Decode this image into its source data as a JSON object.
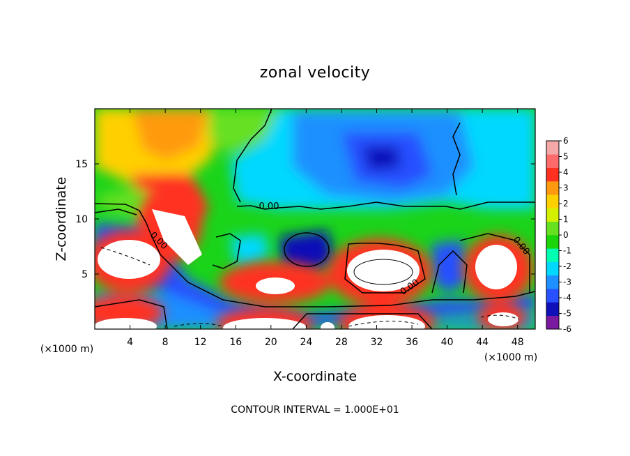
{
  "chart_data": {
    "type": "heatmap",
    "title": "zonal velocity",
    "xlabel": "X-coordinate",
    "ylabel": "Z-coordinate",
    "x_unit_label": "(×1000 m)",
    "xlim": [
      0,
      50
    ],
    "ylim": [
      0,
      20
    ],
    "x_ticks": [
      4,
      8,
      12,
      16,
      20,
      24,
      28,
      32,
      36,
      40,
      44,
      48
    ],
    "y_ticks": [
      5,
      10,
      15
    ],
    "colorbar": {
      "range": [
        -6,
        6
      ],
      "ticks": [
        -6,
        -5,
        -4,
        -3,
        -2,
        -1,
        0,
        1,
        2,
        3,
        4,
        5,
        6
      ],
      "colors": [
        "#7a1aa0",
        "#1010b8",
        "#2850ff",
        "#1e90ff",
        "#00d8ff",
        "#00ffb0",
        "#1bd40a",
        "#66e020",
        "#d4f000",
        "#ffd000",
        "#ff9a10",
        "#ff3020",
        "#ff6a6a",
        "#f4a8a8"
      ]
    },
    "contour_labels": [
      "0.00",
      "0.00",
      "0.00",
      "0.00"
    ],
    "footer": "CONTOUR INTERVAL = 1.000E+01",
    "features": [
      {
        "x": 6,
        "y": 18,
        "value": 3
      },
      {
        "x": 9,
        "y": 11,
        "value": 5
      },
      {
        "x": 9,
        "y": 8,
        "value": 6
      },
      {
        "x": 23,
        "y": 15,
        "value": -2
      },
      {
        "x": 32,
        "y": 15.5,
        "value": -5
      },
      {
        "x": 24,
        "y": 7,
        "value": -5
      },
      {
        "x": 31,
        "y": 5.5,
        "value": 6
      },
      {
        "x": 21,
        "y": 4,
        "value": 6
      },
      {
        "x": 43,
        "y": 6,
        "value": 6
      },
      {
        "x": 4,
        "y": 6.5,
        "value": 6
      },
      {
        "x": 39,
        "y": 5,
        "value": -5
      },
      {
        "x": 20,
        "y": 2,
        "value": -5
      },
      {
        "x": 31,
        "y": 1,
        "value": 6
      },
      {
        "x": 18,
        "y": 1,
        "value": 6
      },
      {
        "x": 3,
        "y": 1.2,
        "value": 6
      }
    ]
  }
}
